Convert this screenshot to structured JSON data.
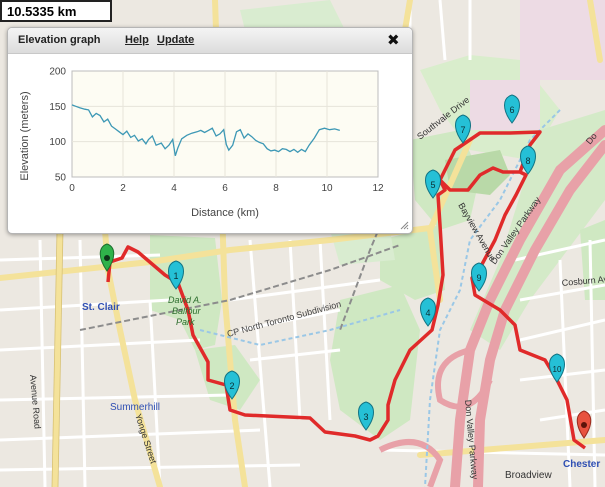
{
  "distance_display": "10.5335 km",
  "elevation_panel": {
    "title": "Elevation graph",
    "help_link": "Help",
    "update_link": "Update",
    "close_icon": "close-icon",
    "chart_data": {
      "type": "line",
      "xlabel": "Distance (km)",
      "ylabel": "Elevation (meters)",
      "xlim": [
        0,
        12
      ],
      "ylim": [
        50,
        200
      ],
      "x_ticks": [
        0,
        2,
        4,
        6,
        8,
        10,
        12
      ],
      "y_ticks": [
        50,
        100,
        150,
        200
      ],
      "line_color": "#3d98b5",
      "x": [
        0,
        0.15,
        0.3,
        0.5,
        0.65,
        0.8,
        0.95,
        1.1,
        1.25,
        1.4,
        1.55,
        1.7,
        1.85,
        2.0,
        2.15,
        2.3,
        2.45,
        2.6,
        2.75,
        2.9,
        3.0,
        3.15,
        3.3,
        3.5,
        3.65,
        3.8,
        3.95,
        4.05,
        4.15,
        4.3,
        4.5,
        4.7,
        4.9,
        5.05,
        5.2,
        5.35,
        5.5,
        5.65,
        5.8,
        5.95,
        6.05,
        6.15,
        6.3,
        6.45,
        6.6,
        6.75,
        6.9,
        7.05,
        7.2,
        7.35,
        7.5,
        7.65,
        7.8,
        7.95,
        8.1,
        8.25,
        8.4,
        8.55,
        8.7,
        8.85,
        9.0,
        9.15,
        9.3,
        9.5,
        9.7,
        9.9,
        10.1,
        10.3,
        10.5
      ],
      "y": [
        152,
        150,
        148,
        146,
        145,
        135,
        140,
        137,
        128,
        132,
        122,
        118,
        114,
        110,
        115,
        106,
        109,
        101,
        104,
        97,
        103,
        108,
        95,
        98,
        90,
        95,
        103,
        80,
        91,
        104,
        109,
        112,
        114,
        116,
        113,
        116,
        119,
        108,
        111,
        117,
        96,
        88,
        95,
        114,
        117,
        105,
        111,
        107,
        102,
        99,
        97,
        90,
        87,
        88,
        86,
        90,
        89,
        86,
        89,
        85,
        89,
        86,
        95,
        105,
        117,
        119,
        117,
        118,
        116
      ],
      "grid": true
    }
  },
  "map": {
    "labels": {
      "st_clair": "St. Clair",
      "summerhill": "Summerhill",
      "david_balfour_line1": "David A.",
      "david_balfour_line2": "Balfour",
      "david_balfour_line3": "Park",
      "cp_subdivision": "CP North Toronto Subdivision",
      "avenue_road": "Avenue Road",
      "yonge_street": "Yonge Street",
      "southvale": "Southvale Drive",
      "bayview": "Bayview Avenue",
      "dvp_north": "Don Valley Parkway",
      "dvp_south": "Don Valley Parkway",
      "cosburn": "Cosburn Ave",
      "broadview": "Broadview",
      "chester": "Chester",
      "dvp_short": "Do"
    },
    "markers": [
      "1",
      "2",
      "3",
      "4",
      "5",
      "6",
      "7",
      "8",
      "9",
      "10"
    ],
    "start_marker_color": "#2fb24a",
    "end_marker_color": "#e8523f",
    "waypoint_color": "#25c0d6",
    "route_color": "#e02a2a"
  }
}
